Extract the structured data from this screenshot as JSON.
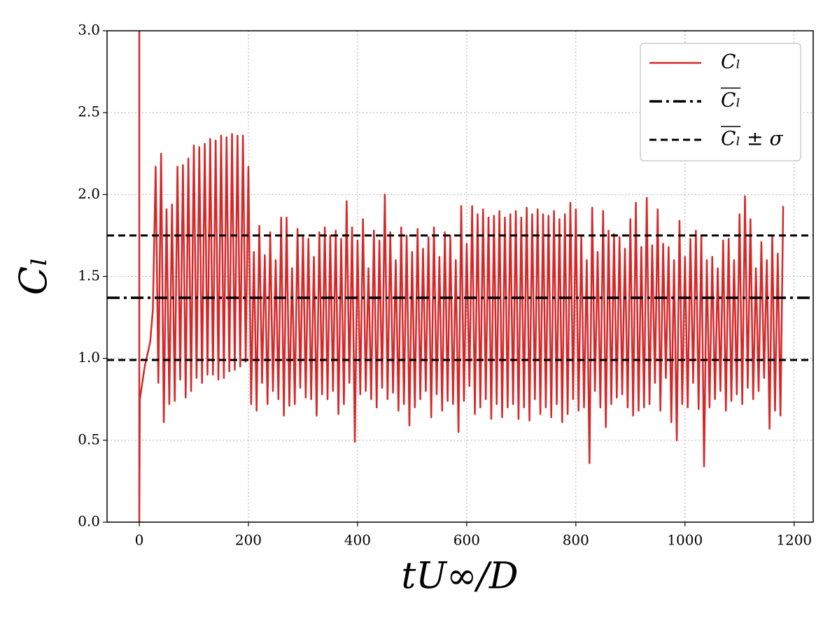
{
  "chart_data": {
    "type": "line",
    "xlabel": "tU∞/D",
    "ylabel": "Cₗ",
    "xlim": [
      -59,
      1235
    ],
    "ylim": [
      0,
      3.0
    ],
    "xticks": [
      0,
      200,
      400,
      600,
      800,
      1000,
      1200
    ],
    "yticks": [
      {
        "value": 0,
        "label": "0.0"
      },
      {
        "value": 0.5,
        "label": "0.5"
      },
      {
        "value": 1,
        "label": "1.0"
      },
      {
        "value": 1.5,
        "label": "1.5"
      },
      {
        "value": 2,
        "label": "2.0"
      },
      {
        "value": 2.5,
        "label": "2.5"
      },
      {
        "value": 3,
        "label": "3.0"
      }
    ],
    "grid": true,
    "legend": "upper right",
    "series": [
      {
        "name": "Cₗ",
        "color": "#d62728",
        "style": "solid",
        "x": [
          0,
          0,
          1,
          10,
          20,
          25,
          30,
          35,
          40,
          45,
          50,
          55,
          60,
          65,
          70,
          75,
          80,
          85,
          90,
          95,
          100,
          105,
          110,
          115,
          120,
          125,
          130,
          135,
          140,
          145,
          150,
          155,
          160,
          165,
          170,
          175,
          180,
          185,
          190,
          195,
          200,
          205,
          210,
          215,
          220,
          225,
          230,
          235,
          240,
          245,
          250,
          255,
          260,
          265,
          270,
          275,
          280,
          285,
          290,
          295,
          300,
          305,
          310,
          315,
          320,
          325,
          330,
          335,
          340,
          345,
          350,
          355,
          360,
          365,
          370,
          375,
          380,
          385,
          390,
          395,
          400,
          405,
          410,
          415,
          420,
          425,
          430,
          435,
          440,
          445,
          450,
          455,
          460,
          465,
          470,
          475,
          480,
          485,
          490,
          495,
          500,
          505,
          510,
          515,
          520,
          525,
          530,
          535,
          540,
          545,
          550,
          555,
          560,
          565,
          570,
          575,
          580,
          585,
          590,
          595,
          600,
          605,
          610,
          615,
          620,
          625,
          630,
          635,
          640,
          645,
          650,
          655,
          660,
          665,
          670,
          675,
          680,
          685,
          690,
          695,
          700,
          705,
          710,
          715,
          720,
          725,
          730,
          735,
          740,
          745,
          750,
          755,
          760,
          765,
          770,
          775,
          780,
          785,
          790,
          795,
          800,
          805,
          810,
          815,
          820,
          825,
          830,
          835,
          840,
          845,
          850,
          855,
          860,
          865,
          870,
          875,
          880,
          885,
          890,
          895,
          900,
          905,
          910,
          915,
          920,
          925,
          930,
          935,
          940,
          945,
          950,
          955,
          960,
          965,
          970,
          975,
          980,
          985,
          990,
          995,
          1000,
          1005,
          1010,
          1015,
          1020,
          1025,
          1030,
          1035,
          1040,
          1045,
          1050,
          1055,
          1060,
          1065,
          1070,
          1075,
          1080,
          1085,
          1090,
          1095,
          1100,
          1105,
          1110,
          1115,
          1120,
          1125,
          1130,
          1135,
          1140,
          1145,
          1150,
          1155,
          1160,
          1165,
          1170,
          1175,
          1180
        ],
        "values": [
          3.0,
          0.0,
          0.75,
          0.95,
          1.1,
          1.3,
          2.17,
          0.85,
          2.25,
          0.61,
          1.91,
          0.72,
          1.94,
          0.74,
          2.17,
          0.87,
          2.18,
          0.76,
          2.22,
          0.8,
          2.3,
          0.88,
          2.29,
          0.85,
          2.31,
          0.9,
          2.34,
          0.9,
          2.33,
          0.87,
          2.36,
          0.88,
          2.35,
          0.92,
          2.37,
          0.93,
          2.36,
          0.95,
          2.36,
          0.98,
          2.17,
          0.72,
          1.65,
          0.68,
          1.81,
          0.85,
          1.63,
          0.72,
          1.77,
          0.8,
          1.6,
          0.75,
          1.86,
          0.65,
          1.86,
          0.71,
          1.55,
          0.72,
          1.79,
          0.82,
          1.75,
          0.76,
          1.73,
          0.75,
          1.62,
          0.65,
          1.77,
          0.78,
          1.8,
          0.75,
          1.75,
          0.8,
          1.78,
          0.66,
          1.73,
          0.72,
          1.96,
          0.85,
          1.8,
          0.49,
          1.72,
          0.78,
          1.85,
          0.8,
          1.55,
          0.75,
          1.78,
          0.7,
          1.72,
          0.82,
          2.0,
          0.75,
          1.77,
          0.79,
          1.6,
          0.68,
          1.8,
          0.72,
          1.75,
          0.59,
          1.65,
          0.7,
          1.79,
          0.75,
          1.67,
          0.8,
          1.74,
          0.64,
          1.8,
          0.78,
          1.62,
          0.68,
          1.77,
          0.74,
          1.75,
          0.72,
          1.6,
          0.55,
          1.93,
          0.74,
          1.7,
          0.83,
          1.93,
          0.66,
          1.88,
          0.7,
          1.91,
          0.75,
          1.86,
          0.63,
          1.87,
          0.72,
          1.9,
          0.64,
          1.86,
          0.7,
          1.88,
          0.72,
          1.9,
          0.63,
          1.86,
          0.7,
          1.92,
          0.62,
          1.88,
          0.75,
          1.91,
          0.66,
          1.88,
          0.7,
          1.87,
          0.64,
          1.9,
          0.72,
          1.85,
          0.61,
          1.88,
          0.66,
          1.95,
          0.75,
          1.91,
          0.68,
          1.75,
          0.7,
          1.6,
          0.36,
          1.92,
          0.8,
          1.65,
          0.7,
          1.9,
          0.58,
          1.78,
          0.72,
          1.76,
          0.76,
          1.74,
          0.78,
          1.67,
          0.7,
          1.85,
          0.65,
          1.95,
          0.68,
          1.68,
          0.7,
          1.98,
          0.72,
          1.69,
          0.85,
          1.91,
          0.68,
          1.7,
          0.88,
          1.68,
          0.61,
          1.6,
          0.5,
          1.84,
          0.72,
          1.62,
          0.7,
          1.73,
          0.85,
          1.78,
          0.69,
          1.75,
          0.34,
          1.6,
          0.7,
          1.62,
          0.75,
          1.55,
          0.8,
          1.72,
          0.68,
          1.73,
          0.74,
          1.6,
          0.78,
          1.88,
          0.72,
          1.99,
          0.82,
          1.85,
          0.75,
          1.55,
          0.8,
          1.71,
          0.88,
          1.6,
          0.57,
          1.75,
          0.68,
          1.64,
          0.65,
          1.93
        ]
      },
      {
        "name": "Cₗ",
        "color": "#000000",
        "style": "dashdot",
        "values": [
          1.37
        ]
      },
      {
        "name": "Cₗ ± σ",
        "color": "#000000",
        "style": "dashed",
        "values": [
          1.75,
          0.99
        ]
      }
    ]
  }
}
